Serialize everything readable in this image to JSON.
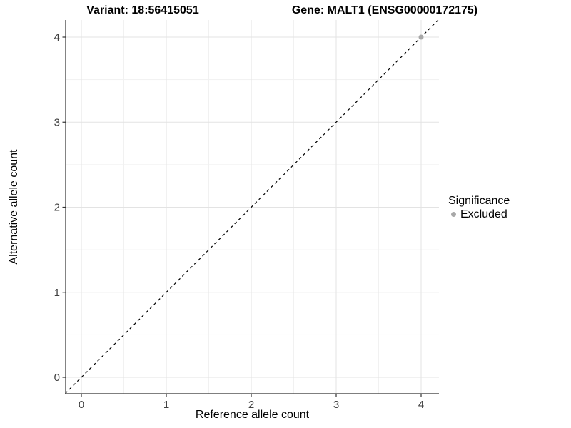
{
  "titles": {
    "left": "Variant: 18:56415051",
    "right": "Gene: MALT1 (ENSG00000172175)"
  },
  "chart_data": {
    "type": "scatter",
    "xlabel": "Reference allele count",
    "ylabel": "Alternative allele count",
    "x_ticks": [
      0,
      1,
      2,
      3,
      4
    ],
    "y_ticks": [
      0,
      1,
      2,
      3,
      4
    ],
    "xlim": [
      -0.19,
      4.21
    ],
    "ylim": [
      -0.19,
      4.2
    ],
    "grid": {
      "major_color": "#e3e3e3",
      "minor_color": "#f1f1f1",
      "minor_step": 0.5
    },
    "axis_color": "#333333",
    "tick_label_color": "#404040",
    "series": [
      {
        "name": "Excluded",
        "color": "#a8a8a8",
        "points": [
          {
            "x": 4,
            "y": 4
          }
        ]
      }
    ],
    "identity_line": {
      "slope": 1,
      "intercept": 0,
      "style": "dashed",
      "color": "#000000"
    },
    "legend": {
      "title": "Significance",
      "position": "right",
      "entries": [
        {
          "label": "Excluded",
          "color": "#a8a8a8"
        }
      ]
    }
  }
}
